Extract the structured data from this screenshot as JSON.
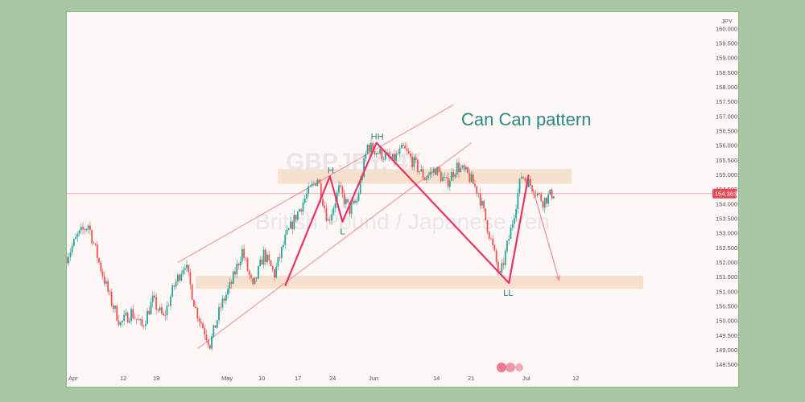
{
  "chart_data": {
    "type": "line",
    "title": "Can Can pattern",
    "currency": "JPY",
    "watermark": "GBPJPY, 45",
    "watermark_subtitle": "British Pound / Japanese Yen",
    "x_tick_labels": [
      "Apr",
      "12",
      "19",
      "May",
      "10",
      "17",
      "24",
      "Jun",
      "14",
      "21",
      "Jul",
      "12"
    ],
    "y_ticks": [
      "160.000",
      "159.500",
      "159.000",
      "158.500",
      "158.000",
      "157.500",
      "157.000",
      "156.500",
      "156.000",
      "155.500",
      "155.000",
      "154.500",
      "154.000",
      "153.500",
      "153.000",
      "152.500",
      "152.000",
      "151.500",
      "151.000",
      "150.500",
      "150.000",
      "149.500",
      "149.000",
      "148.500"
    ],
    "ylim": [
      148.3,
      160.3
    ],
    "last_price": "154.363",
    "colors": {
      "candle_up": "#26a69a",
      "candle_down": "#ef5350",
      "pattern": "#e8336a",
      "channel": "#f08a95",
      "zone": "#f7dcc8",
      "price_line": "#f3a3a3",
      "price_tag": "#e74c5a",
      "label": "#2a7f78"
    },
    "price_path": {
      "x": [
        0,
        3,
        6,
        9,
        12,
        15,
        18,
        21,
        24,
        27,
        30,
        33,
        36,
        40,
        43,
        46,
        49,
        52,
        55,
        58,
        61,
        64,
        67,
        70,
        73,
        76,
        79,
        81,
        84,
        88,
        91,
        94,
        97,
        100,
        103,
        106,
        109,
        112,
        115,
        118,
        121,
        124,
        127,
        130,
        133,
        136
      ],
      "y": [
        152.2,
        152.9,
        153.3,
        152.0,
        150.8,
        149.9,
        150.3,
        149.8,
        150.7,
        150.1,
        151.2,
        152.0,
        150.4,
        149.2,
        150.5,
        151.3,
        152.4,
        151.1,
        152.3,
        151.6,
        152.8,
        153.6,
        154.3,
        154.9,
        153.4,
        154.5,
        153.8,
        154.1,
        156.0,
        155.7,
        155.5,
        155.9,
        155.4,
        154.9,
        155.2,
        154.7,
        155.3,
        155.0,
        154.4,
        153.0,
        151.5,
        153.1,
        155.0,
        154.6,
        154.1,
        154.4
      ]
    },
    "pattern": {
      "points": [
        {
          "label": "",
          "x": 61,
          "y": 151.2
        },
        {
          "label": "H",
          "x": 73.5,
          "y": 154.95
        },
        {
          "label": "L",
          "x": 77,
          "y": 153.4
        },
        {
          "label": "HH",
          "x": 86.5,
          "y": 156.1
        },
        {
          "label": "LL",
          "x": 123.5,
          "y": 151.3
        },
        {
          "label": "",
          "x": 129,
          "y": 155.0
        }
      ],
      "projection": {
        "from": [
          130,
          154.6
        ],
        "to": [
          137.5,
          151.4
        ]
      }
    },
    "channel": {
      "upper": {
        "from": [
          31,
          152.0
        ],
        "to": [
          108,
          157.4
        ]
      },
      "lower": {
        "from": [
          36.5,
          149.05
        ],
        "to": [
          113,
          156.1
        ]
      }
    },
    "zones": [
      {
        "y0": 154.7,
        "y1": 155.2,
        "x0": 59,
        "x1": 141
      },
      {
        "y0": 151.1,
        "y1": 151.55,
        "x0": 36,
        "x1": 161
      }
    ]
  }
}
